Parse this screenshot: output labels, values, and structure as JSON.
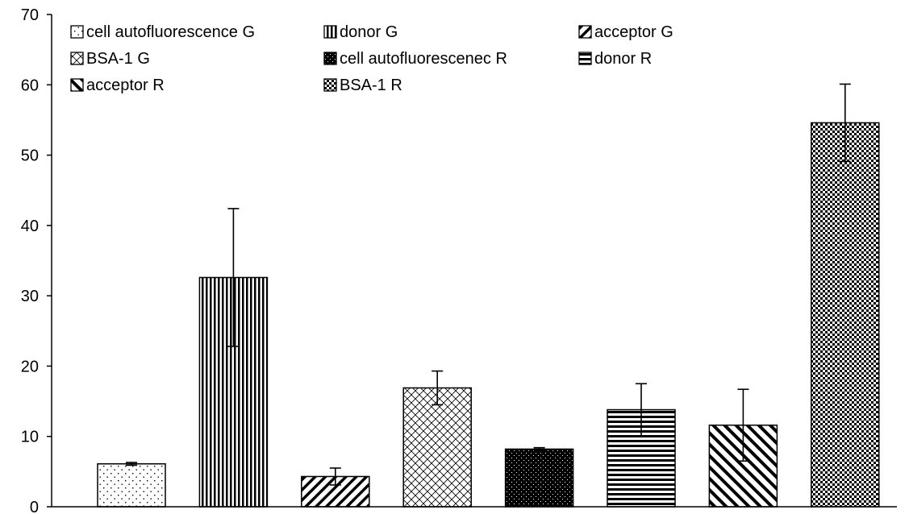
{
  "chart_data": {
    "type": "bar",
    "title": "",
    "xlabel": "",
    "ylabel": "",
    "ylim": [
      0,
      70
    ],
    "yticks": [
      0,
      10,
      20,
      30,
      40,
      50,
      60,
      70
    ],
    "grid": false,
    "legend_position": "top",
    "series": [
      {
        "name": "cell autofluorescence G",
        "value": 6.1,
        "error": 0.2,
        "pattern": "dots"
      },
      {
        "name": "donor G",
        "value": 32.6,
        "error": 9.8,
        "pattern": "vertical"
      },
      {
        "name": "acceptor G",
        "value": 4.3,
        "error": 1.2,
        "pattern": "diag-up"
      },
      {
        "name": "BSA-1 G",
        "value": 16.9,
        "error": 2.4,
        "pattern": "crosshatch"
      },
      {
        "name": "cell autofluorescenec R",
        "value": 8.2,
        "error": 0.2,
        "pattern": "solid-dots"
      },
      {
        "name": "donor R",
        "value": 13.8,
        "error": 3.7,
        "pattern": "horizontal"
      },
      {
        "name": "acceptor R",
        "value": 11.6,
        "error": 5.1,
        "pattern": "diag-down"
      },
      {
        "name": "BSA-1 R",
        "value": 54.6,
        "error": 5.5,
        "pattern": "checker"
      }
    ]
  }
}
